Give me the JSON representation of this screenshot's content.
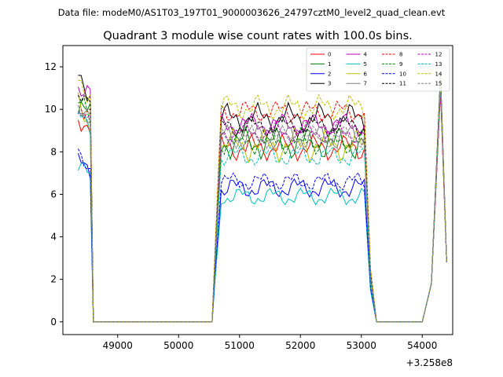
{
  "figure": {
    "suptitle": "Data file: modeM0/AS1T03_197T01_9000003626_24797cztM0_level2_quad_clean.evt"
  },
  "chart_data": {
    "type": "line",
    "title": "Quadrant 3 module wise count rates with 100.0s bins.",
    "xlabel": "",
    "ylabel": "",
    "x_offset_label": "+3.258e8",
    "xlim": [
      48100,
      54500
    ],
    "ylim": [
      -0.6,
      13.0
    ],
    "x_ticks": [
      49000,
      50000,
      51000,
      52000,
      53000,
      54000
    ],
    "x_tick_labels": [
      "49000",
      "50000",
      "51000",
      "52000",
      "53000",
      "54000"
    ],
    "y_ticks": [
      0,
      2,
      4,
      6,
      8,
      10,
      12
    ],
    "y_tick_labels": [
      "0",
      "2",
      "4",
      "6",
      "8",
      "10",
      "12"
    ],
    "grid": false,
    "legend_position": "top-right",
    "series": [
      {
        "name": "0",
        "color": "#ff0000",
        "dash": "solid",
        "level1": 9.8,
        "level2": 8.2,
        "amp": 0.4
      },
      {
        "name": "1",
        "color": "#008000",
        "dash": "solid",
        "level1": 10.1,
        "level2": 8.4,
        "amp": 0.5
      },
      {
        "name": "2",
        "color": "#0000ff",
        "dash": "solid",
        "level1": 7.5,
        "level2": 6.3,
        "amp": 0.35
      },
      {
        "name": "3",
        "color": "#000000",
        "dash": "solid",
        "level1": 11.7,
        "level2": 9.6,
        "amp": 0.45
      },
      {
        "name": "4",
        "color": "#bf00bf",
        "dash": "solid",
        "level1": 11.2,
        "level2": 9.3,
        "amp": 0.35
      },
      {
        "name": "5",
        "color": "#00bfbf",
        "dash": "solid",
        "level1": 7.3,
        "level2": 5.9,
        "amp": 0.3
      },
      {
        "name": "6",
        "color": "#bfbf00",
        "dash": "solid",
        "level1": 10.0,
        "level2": 8.3,
        "amp": 0.5
      },
      {
        "name": "7",
        "color": "#808080",
        "dash": "solid",
        "level1": 10.2,
        "level2": 8.7,
        "amp": 0.4
      },
      {
        "name": "8",
        "color": "#ff0000",
        "dash": "dashed",
        "level1": 10.0,
        "level2": 9.9,
        "amp": 0.35
      },
      {
        "name": "9",
        "color": "#008000",
        "dash": "dashed",
        "level1": 10.3,
        "level2": 8.5,
        "amp": 0.4
      },
      {
        "name": "10",
        "color": "#0000ff",
        "dash": "dashed",
        "level1": 7.8,
        "level2": 6.6,
        "amp": 0.3
      },
      {
        "name": "11",
        "color": "#000000",
        "dash": "dashed",
        "level1": 11.0,
        "level2": 9.2,
        "amp": 0.35
      },
      {
        "name": "12",
        "color": "#bf00bf",
        "dash": "dashed",
        "level1": 10.0,
        "level2": 8.9,
        "amp": 0.35
      },
      {
        "name": "13",
        "color": "#00bfbf",
        "dash": "dashed",
        "level1": 9.6,
        "level2": 7.8,
        "amp": 0.35
      },
      {
        "name": "14",
        "color": "#bfbf00",
        "dash": "dashed",
        "level1": 11.3,
        "level2": 10.1,
        "amp": 0.4
      },
      {
        "name": "15",
        "color": "#808080",
        "dash": "dashed",
        "level1": 10.4,
        "level2": 8.7,
        "amp": 0.35
      }
    ],
    "segments": [
      {
        "x_start": 48350,
        "x_end": 48550,
        "step": 50,
        "region": "level1"
      },
      {
        "x_start": 48600,
        "x_end": 48600,
        "step": 50,
        "value": 0
      },
      {
        "x_start": 48650,
        "x_end": 50500,
        "step": 100,
        "value": 0
      },
      {
        "x_start": 50550,
        "x_end": 50550,
        "step": 50,
        "value": 0
      },
      {
        "x_start": 50600,
        "x_end": 50600,
        "step": 50,
        "scale": 0.35,
        "region": "level2"
      },
      {
        "x_start": 50700,
        "x_end": 53050,
        "step": 50,
        "region": "level2"
      },
      {
        "x_start": 53150,
        "x_end": 53150,
        "step": 50,
        "scale": 0.25,
        "region": "level2"
      },
      {
        "x_start": 53250,
        "x_end": 53250,
        "step": 50,
        "value": 0
      },
      {
        "x_start": 53300,
        "x_end": 54050,
        "step": 100,
        "value": 0
      },
      {
        "x_start": 54150,
        "x_end": 54150,
        "step": 50,
        "value": 1.8
      },
      {
        "x_start": 54300,
        "x_end": 54300,
        "step": 50,
        "value": 11.3
      },
      {
        "x_start": 54400,
        "x_end": 54400,
        "step": 50,
        "value": 2.8
      }
    ]
  }
}
